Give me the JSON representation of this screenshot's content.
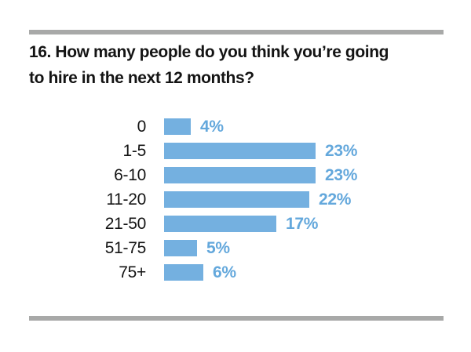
{
  "page": {
    "background": "#ffffff",
    "rule_color": "#a8a9a8"
  },
  "title": {
    "line1": "16. How many people do you think you’re going",
    "line2": "to hire in the next 12 months?"
  },
  "chart_data": {
    "type": "bar",
    "orientation": "horizontal",
    "title": "16. How many people do you think you’re going to hire in the next 12 months?",
    "categories": [
      "0",
      "1-5",
      "6-10",
      "11-20",
      "21-50",
      "51-75",
      "75+"
    ],
    "values": [
      4,
      23,
      23,
      22,
      17,
      5,
      6
    ],
    "value_labels": [
      "4%",
      "23%",
      "23%",
      "22%",
      "17%",
      "5%",
      "6%"
    ],
    "unit": "%",
    "xlabel": "",
    "ylabel": "",
    "xlim": [
      0,
      25
    ],
    "grid": false,
    "legend": false,
    "bar_color": "#74b0e0",
    "value_label_color": "#64a8dc"
  }
}
